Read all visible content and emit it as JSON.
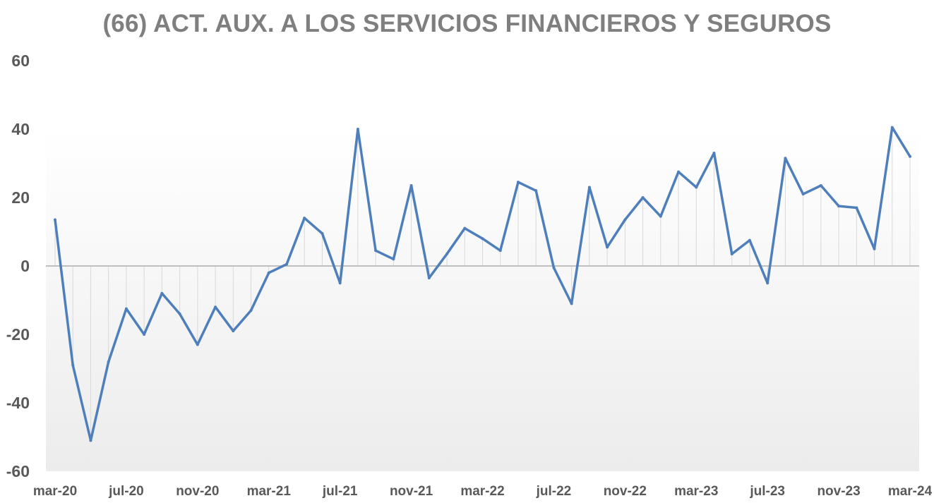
{
  "chart_data": {
    "type": "line",
    "title": "(66) ACT. AUX. A LOS SERVICIOS FINANCIEROS Y SEGUROS",
    "xlabel": "",
    "ylabel": "",
    "ylim": [
      -60,
      60
    ],
    "y_ticks": [
      "60",
      "40",
      "20",
      "0",
      "-20",
      "-40",
      "-60"
    ],
    "x_tick_labels": [
      "mar-20",
      "jul-20",
      "nov-20",
      "mar-21",
      "jul-21",
      "nov-21",
      "mar-22",
      "jul-22",
      "nov-22",
      "mar-23",
      "jul-23",
      "nov-23",
      "mar-24"
    ],
    "x": [
      "mar-20",
      "abr-20",
      "may-20",
      "jun-20",
      "jul-20",
      "ago-20",
      "sep-20",
      "oct-20",
      "nov-20",
      "dic-20",
      "ene-21",
      "feb-21",
      "mar-21",
      "abr-21",
      "may-21",
      "jun-21",
      "jul-21",
      "ago-21",
      "sep-21",
      "oct-21",
      "nov-21",
      "dic-21",
      "ene-22",
      "feb-22",
      "mar-22",
      "abr-22",
      "may-22",
      "jun-22",
      "jul-22",
      "ago-22",
      "sep-22",
      "oct-22",
      "nov-22",
      "dic-22",
      "ene-23",
      "feb-23",
      "mar-23",
      "abr-23",
      "may-23",
      "jun-23",
      "jul-23",
      "ago-23",
      "sep-23",
      "oct-23",
      "nov-23",
      "dic-23",
      "ene-24",
      "feb-24",
      "mar-24"
    ],
    "series": [
      {
        "color": "#4f7fba",
        "values": [
          13.5,
          -29,
          -51,
          -28,
          -12.5,
          -20,
          -8,
          -14,
          -23,
          -12,
          -19,
          -13,
          -2,
          0.5,
          14,
          9.5,
          -5,
          40,
          4.5,
          2,
          23.5,
          -3.5,
          3.5,
          11,
          8,
          4.5,
          24.5,
          22,
          -0.5,
          -11,
          23,
          5.5,
          13.5,
          20,
          14.5,
          27.5,
          23,
          33,
          3.5,
          7.5,
          -5,
          31.5,
          21,
          23.5,
          17.5,
          17,
          5,
          40.5,
          32
        ]
      }
    ],
    "colors": {
      "line": "#4f7fba",
      "drop_lines": "#d9d9d9",
      "axis": "#bfbfbf",
      "title": "#7f7f7f",
      "ticks": "#595959"
    },
    "grid": false,
    "drop_lines": true,
    "legend": "none"
  }
}
